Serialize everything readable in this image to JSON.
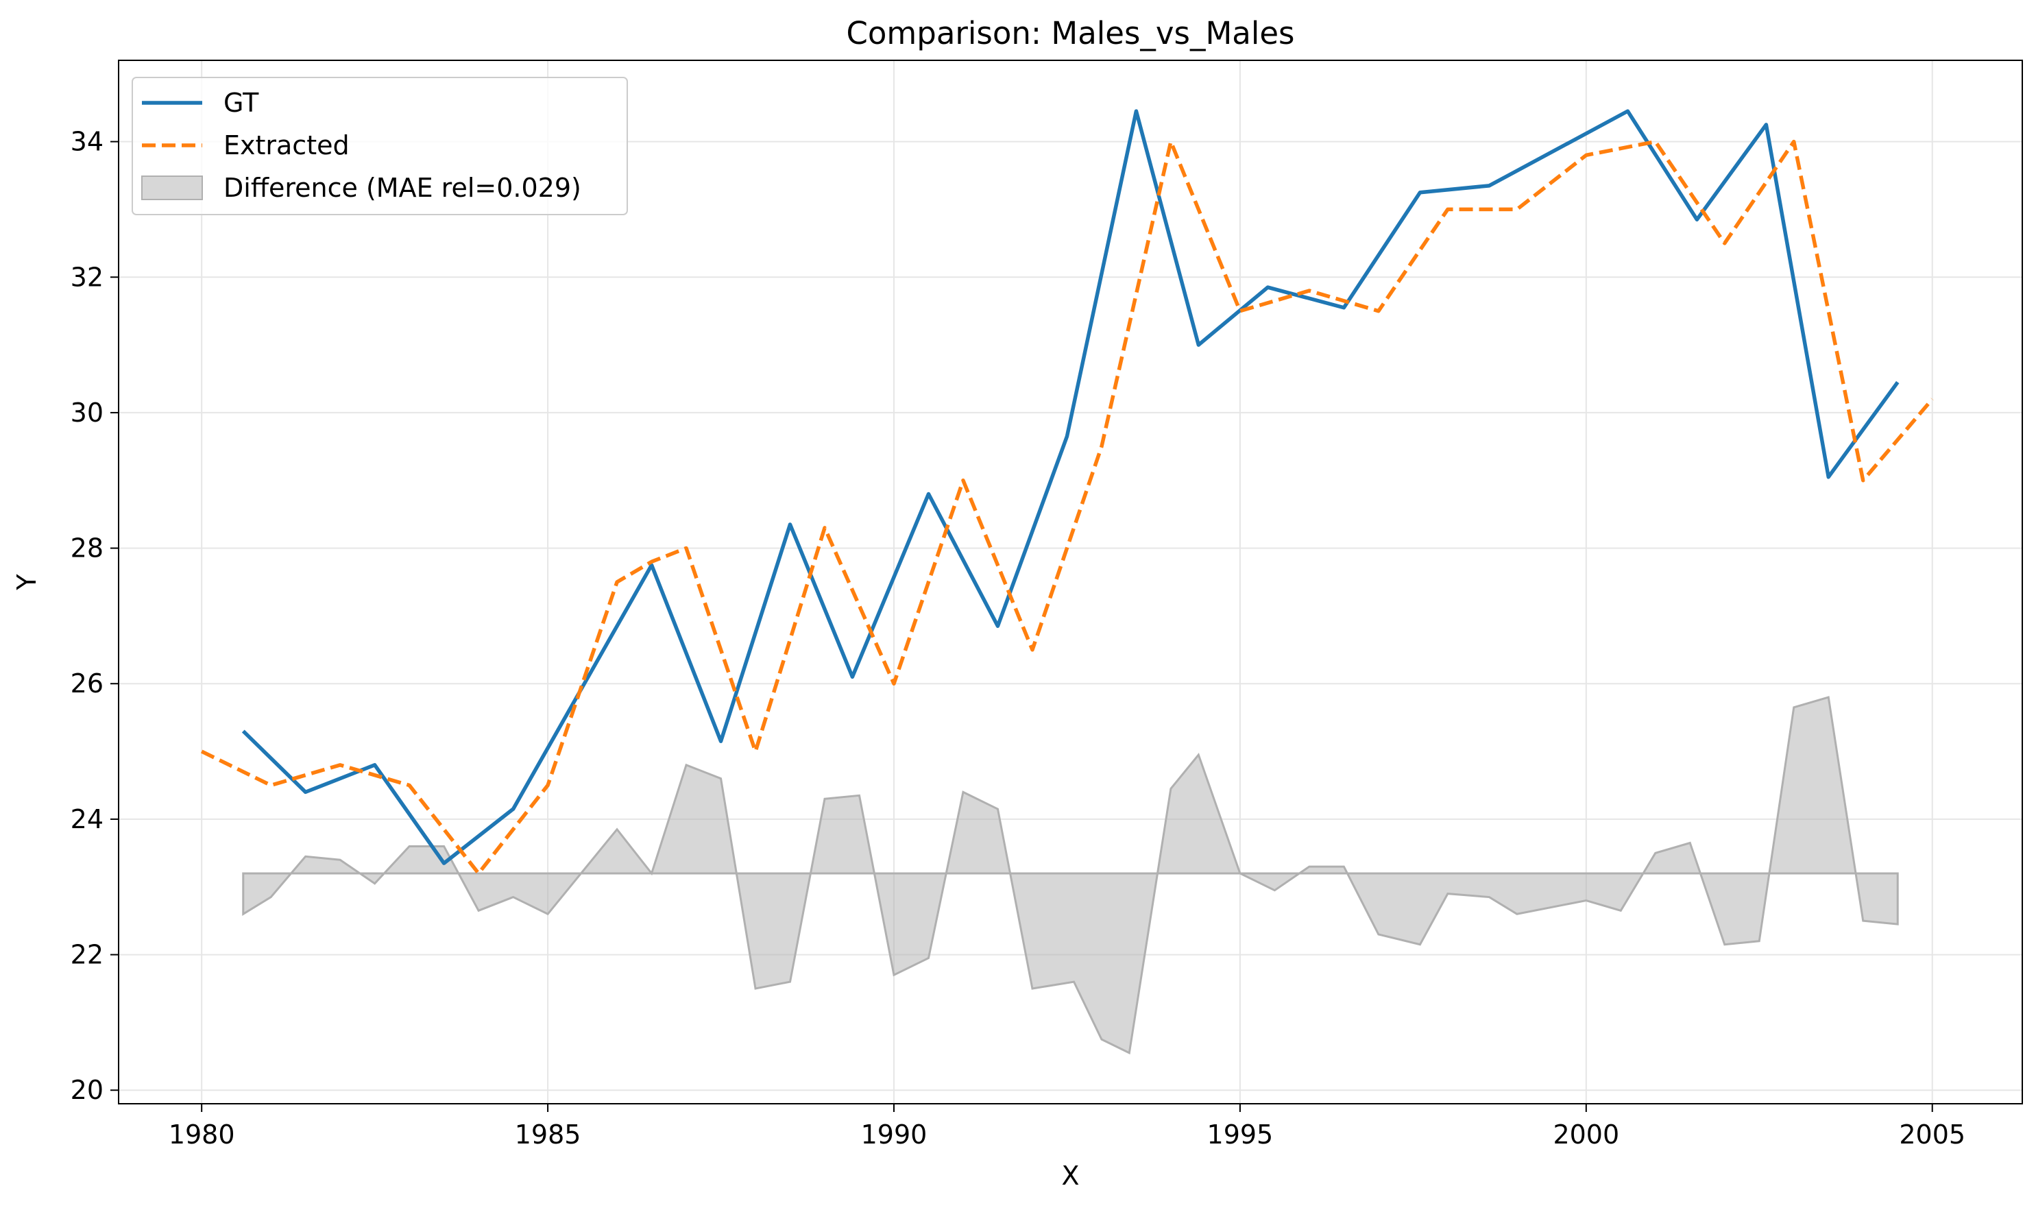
{
  "chart_data": {
    "type": "line",
    "title": "Comparison: Males_vs_Males",
    "xlabel": "X",
    "ylabel": "Y",
    "xlim": [
      1978.8,
      2006.3
    ],
    "ylim": [
      19.8,
      35.2
    ],
    "xticks": [
      1980,
      1985,
      1990,
      1995,
      2000,
      2005
    ],
    "yticks": [
      20,
      22,
      24,
      26,
      28,
      30,
      32,
      34
    ],
    "grid": true,
    "legend_position": "top-left",
    "colors": {
      "gt": "#1f77b4",
      "extracted": "#ff7f0e",
      "difference": "#b0b0b0"
    },
    "series": [
      {
        "name": "GT",
        "style": "solid",
        "x": [
          1980.6,
          1981.5,
          1982.5,
          1983.5,
          1984.5,
          1985.5,
          1986.5,
          1987.5,
          1988.5,
          1989.4,
          1990.5,
          1991.5,
          1992.5,
          1993.5,
          1994.4,
          1995.4,
          1996.5,
          1997.6,
          1998.6,
          2000.6,
          2001.6,
          2002.6,
          2003.5,
          2004.5
        ],
        "y": [
          25.3,
          24.4,
          24.8,
          23.35,
          24.15,
          25.95,
          27.75,
          25.15,
          28.35,
          26.1,
          28.8,
          26.85,
          29.65,
          34.45,
          31.0,
          31.85,
          31.55,
          33.25,
          33.35,
          34.45,
          32.85,
          34.25,
          29.05,
          30.45
        ]
      },
      {
        "name": "Extracted",
        "style": "dashed",
        "x": [
          1980,
          1981,
          1982,
          1983,
          1984,
          1985,
          1986,
          1986.5,
          1987,
          1988,
          1989,
          1990,
          1991,
          1992,
          1993,
          1994,
          1995,
          1996,
          1997,
          1998,
          1999,
          2000,
          2001,
          2002,
          2003,
          2004,
          2005
        ],
        "y": [
          25.0,
          24.5,
          24.8,
          24.5,
          23.2,
          24.5,
          27.5,
          27.8,
          28.0,
          25.0,
          28.3,
          26.0,
          29.0,
          26.5,
          29.5,
          34.0,
          31.5,
          31.8,
          31.5,
          33.0,
          33.0,
          33.8,
          34.0,
          32.5,
          34.0,
          29.0,
          30.2
        ]
      },
      {
        "name": "Difference (MAE rel=0.029)",
        "style": "fill",
        "baseline": 23.2,
        "x": [
          1980.6,
          1981,
          1981.5,
          1982,
          1982.5,
          1983,
          1983.5,
          1984,
          1984.5,
          1985,
          1986,
          1986.5,
          1987,
          1987.5,
          1988,
          1988.5,
          1989,
          1989.5,
          1990,
          1990.5,
          1991,
          1991.5,
          1992,
          1992.6,
          1993,
          1993.4,
          1994,
          1994.4,
          1995,
          1995.5,
          1996,
          1996.5,
          1997,
          1997.6,
          1998,
          1998.6,
          1999,
          2000,
          2000.5,
          2001,
          2001.5,
          2002,
          2002.5,
          2003,
          2003.5,
          2004,
          2004.5
        ],
        "y": [
          22.6,
          22.85,
          23.45,
          23.4,
          23.05,
          23.6,
          23.6,
          22.65,
          22.85,
          22.6,
          23.85,
          23.2,
          24.8,
          24.6,
          21.5,
          21.6,
          24.3,
          24.35,
          21.7,
          21.95,
          24.4,
          24.15,
          21.5,
          21.6,
          20.75,
          20.55,
          24.45,
          24.95,
          23.2,
          22.95,
          23.3,
          23.3,
          22.3,
          22.15,
          22.9,
          22.85,
          22.6,
          22.8,
          22.65,
          23.5,
          23.65,
          22.15,
          22.2,
          25.65,
          25.8,
          22.5,
          22.45
        ]
      }
    ]
  }
}
